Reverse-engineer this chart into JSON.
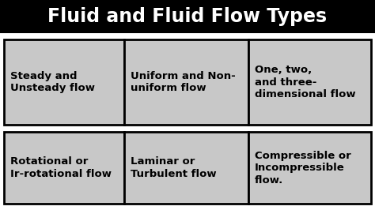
{
  "title": "Fluid and Fluid Flow Types",
  "title_bg": "#000000",
  "title_color": "#ffffff",
  "cell_bg": "#c8c8c8",
  "border_color": "#000000",
  "text_color": "#000000",
  "fig_bg": "#ffffff",
  "row1": [
    "Steady and\nUnsteady flow",
    "Uniform and Non-\nuniform flow",
    "One, two,\nand three-\ndimensional flow"
  ],
  "row2": [
    "Rotational or\nIr-rotational flow",
    "Laminar or\nTurbulent flow",
    "Compressible or\nIncompressible\nflow."
  ],
  "title_fontsize": 17,
  "cell_fontsize": 9.5,
  "fig_width": 4.74,
  "fig_height": 2.66,
  "dpi": 100
}
